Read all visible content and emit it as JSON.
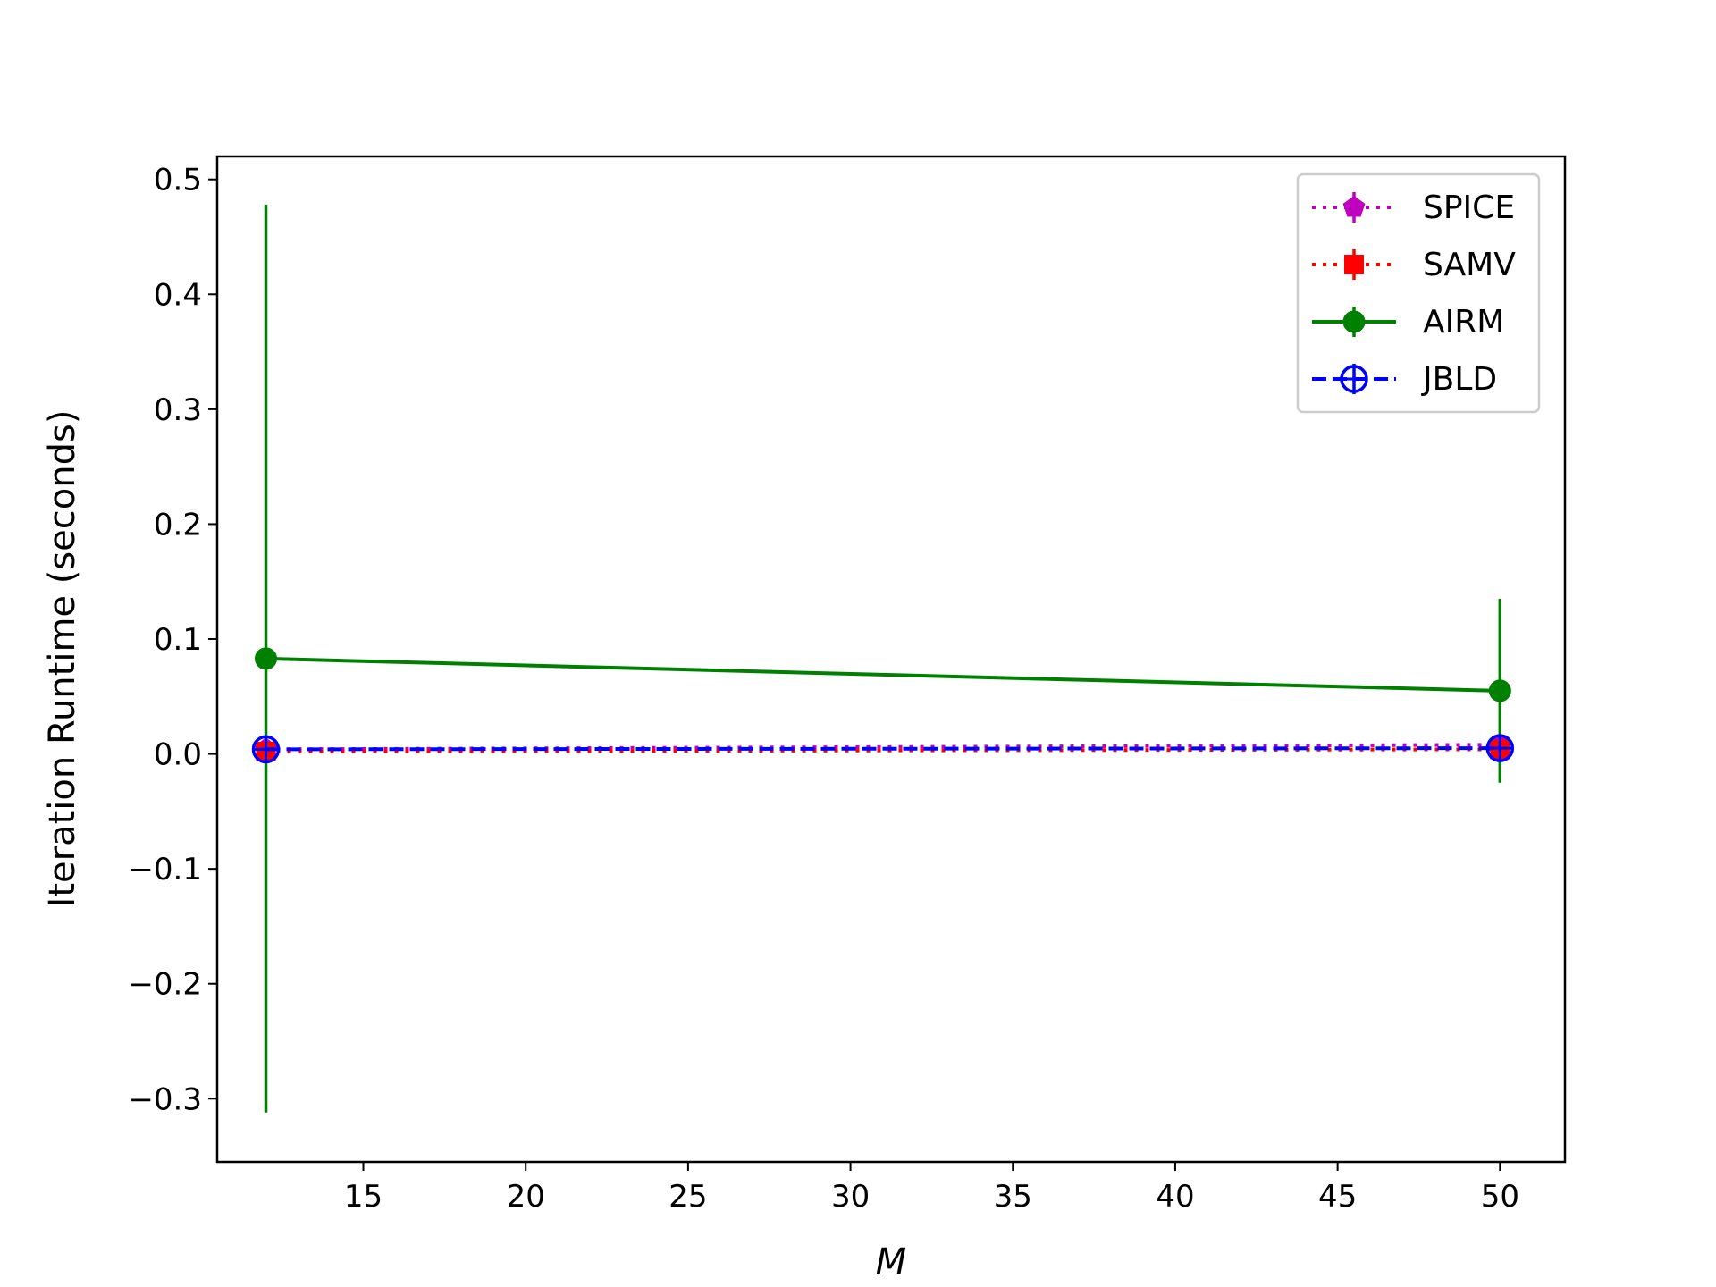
{
  "chart_data": {
    "type": "line",
    "title": "",
    "xlabel": "M",
    "ylabel": "Iteration Runtime (seconds)",
    "xlim": [
      10.5,
      52
    ],
    "ylim": [
      -0.355,
      0.52
    ],
    "x_ticks": [
      15,
      20,
      25,
      30,
      35,
      40,
      45,
      50
    ],
    "y_ticks": [
      -0.3,
      -0.2,
      -0.1,
      0.0,
      0.1,
      0.2,
      0.3,
      0.4,
      0.5
    ],
    "x_tick_labels": [
      "15",
      "20",
      "25",
      "30",
      "35",
      "40",
      "45",
      "50"
    ],
    "y_tick_labels": [
      "−0.3",
      "−0.2",
      "−0.1",
      "0.0",
      "0.1",
      "0.2",
      "0.3",
      "0.4",
      "0.5"
    ],
    "grid": false,
    "legend_position": "upper right",
    "series": [
      {
        "name": "SPICE",
        "color": "#bf00bf",
        "line_style": "dotted",
        "marker": "pentagon",
        "x": [
          12,
          50
        ],
        "y": [
          0.004,
          0.008
        ],
        "yerr": [
          0.002,
          0.003
        ]
      },
      {
        "name": "SAMV",
        "color": "#ff0000",
        "line_style": "dotted",
        "marker": "square",
        "x": [
          12,
          50
        ],
        "y": [
          0.002,
          0.004
        ],
        "yerr": [
          0.001,
          0.002
        ]
      },
      {
        "name": "AIRM",
        "color": "#008000",
        "line_style": "solid",
        "marker": "circle",
        "x": [
          12,
          50
        ],
        "y": [
          0.083,
          0.055
        ],
        "yerr": [
          0.395,
          0.08
        ]
      },
      {
        "name": "JBLD",
        "color": "#0000ff",
        "line_style": "dashed",
        "marker": "circle-plus",
        "x": [
          12,
          50
        ],
        "y": [
          0.004,
          0.005
        ],
        "yerr": [
          0.002,
          0.002
        ]
      }
    ]
  }
}
